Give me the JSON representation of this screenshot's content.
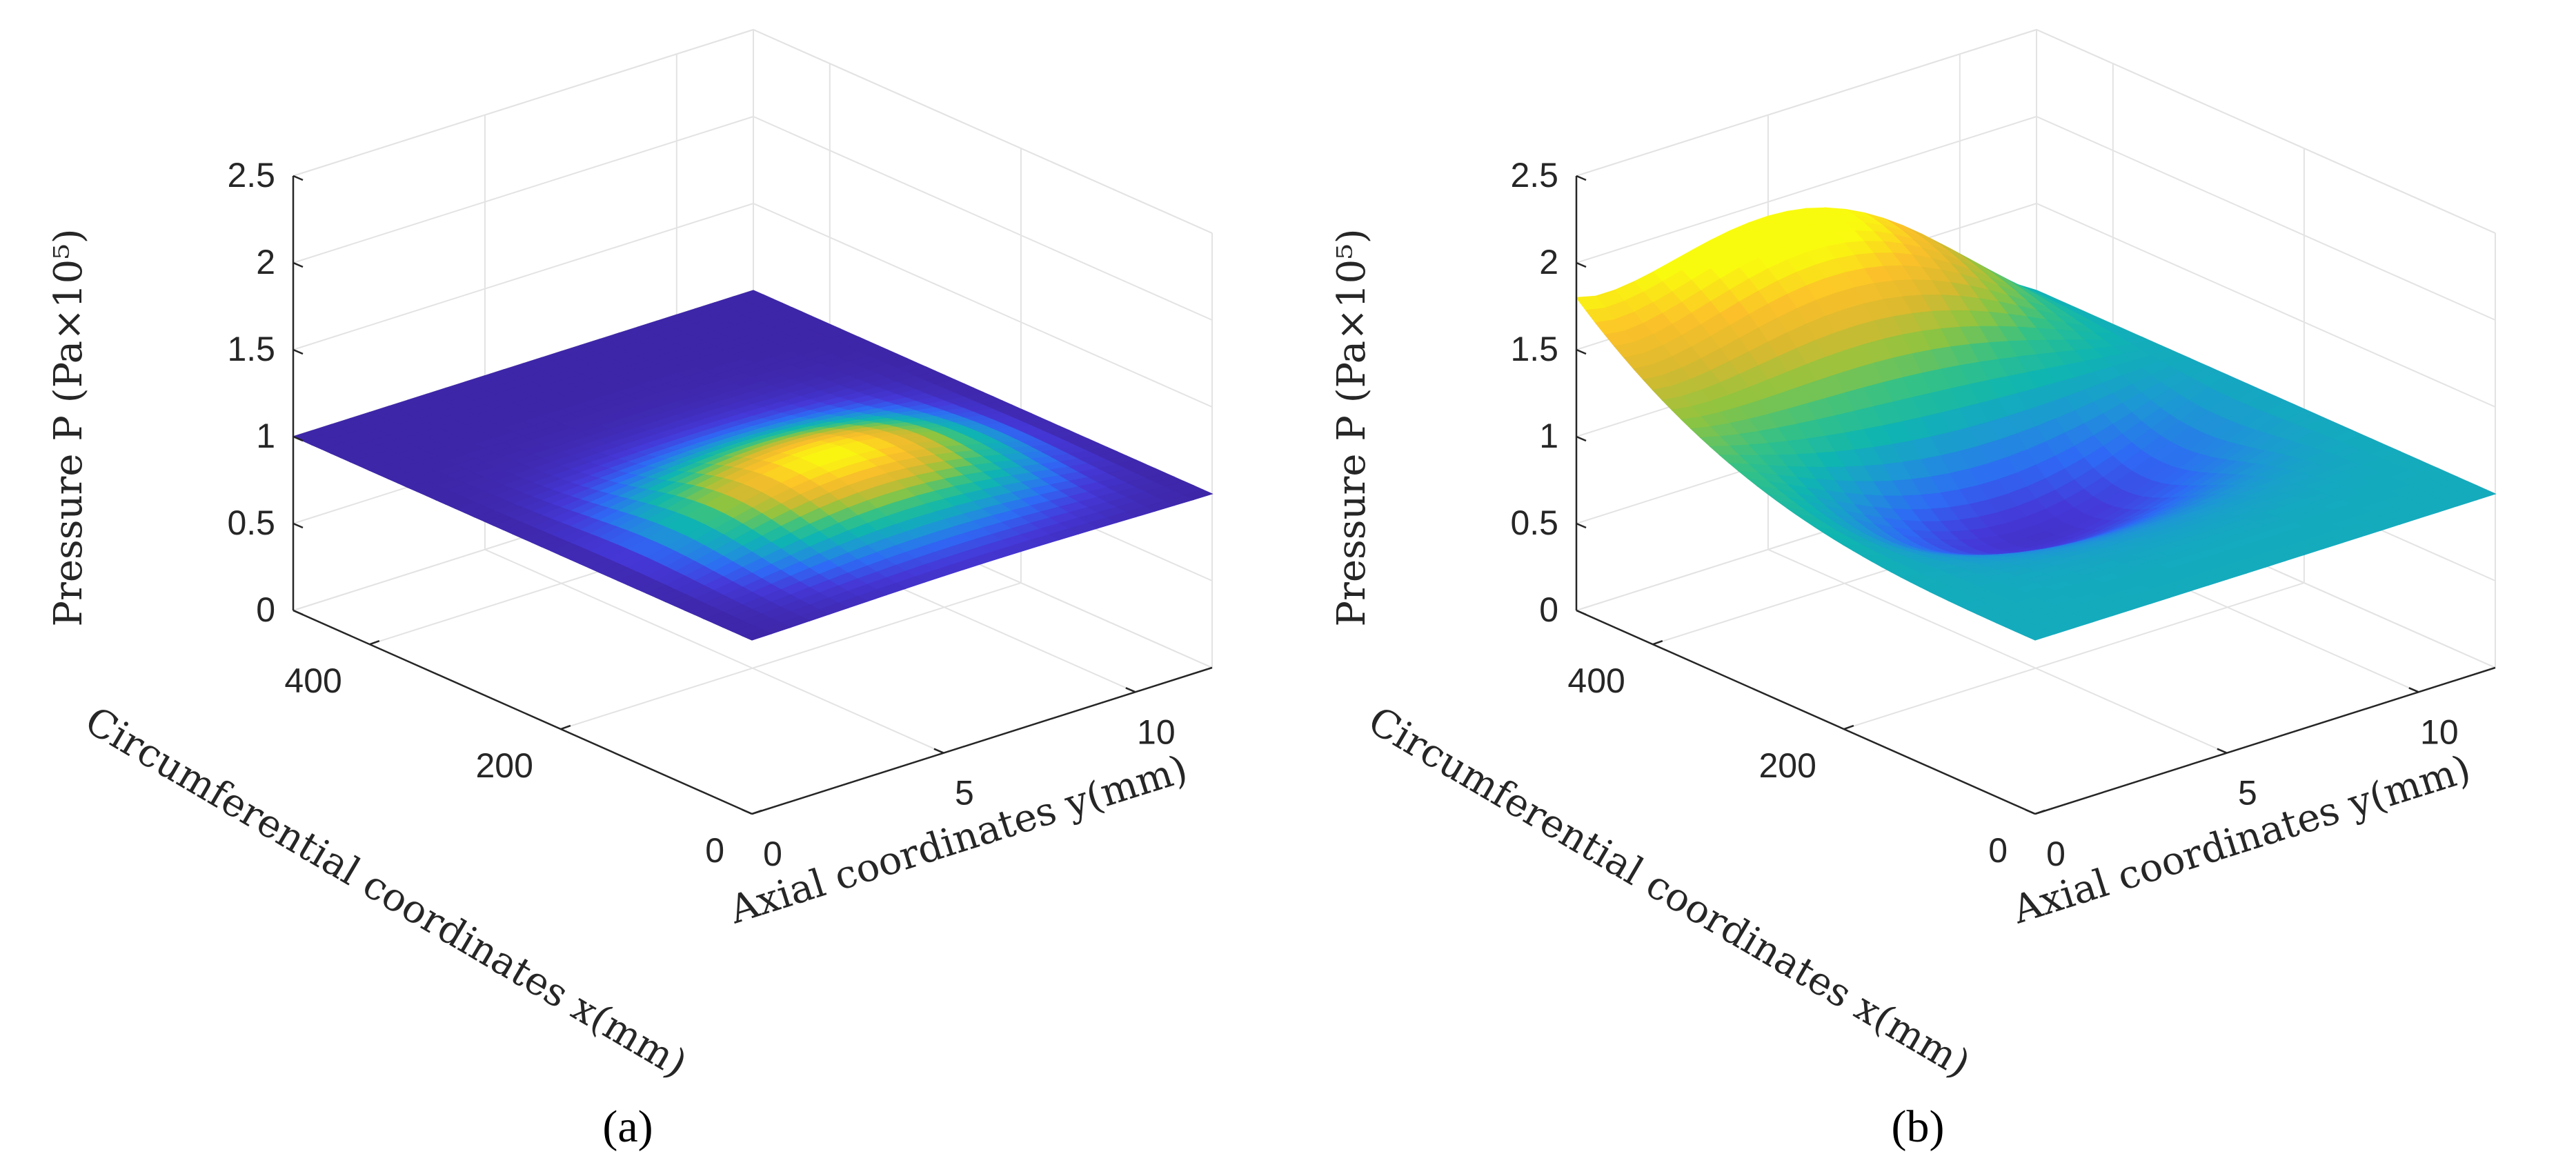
{
  "figure": {
    "panels": [
      {
        "label": "(a)",
        "label_letter": "a"
      },
      {
        "label": "(b)",
        "label_letter": "b"
      }
    ]
  },
  "chart_data": [
    {
      "type": "surface",
      "panel": "a",
      "zlabel": "Pressure P (Pa×10⁵)",
      "xlabel": "Circumferential coordinates x(mm)",
      "ylabel": "Axial coordinates y(mm)",
      "x_ticks": [
        "0",
        "200",
        "400"
      ],
      "y_ticks": [
        "0",
        "5",
        "10"
      ],
      "z_ticks": [
        "0",
        "0.5",
        "1",
        "1.5",
        "2",
        "2.5"
      ],
      "xlim": [
        0,
        480
      ],
      "ylim": [
        0,
        12
      ],
      "zlim": [
        0,
        2.5
      ],
      "grid": true,
      "colormap": "parula",
      "ambient_pressure": 1.0,
      "peak_pressure": 1.25,
      "peak_location_x": 160,
      "description_values": {
        "bump_center_y": 6,
        "bump_width_x": 190
      }
    },
    {
      "type": "surface",
      "panel": "b",
      "zlabel": "Pressure P (Pa×10⁵)",
      "xlabel": "Circumferential coordinates x(mm)",
      "ylabel": "Axial coordinates y(mm)",
      "x_ticks": [
        "0",
        "200",
        "400"
      ],
      "y_ticks": [
        "0",
        "5",
        "10"
      ],
      "z_ticks": [
        "0",
        "0.5",
        "1",
        "1.5",
        "2",
        "2.5"
      ],
      "xlim": [
        0,
        480
      ],
      "ylim": [
        0,
        12
      ],
      "zlim": [
        0,
        2.5
      ],
      "grid": true,
      "colormap": "parula",
      "ambient_pressure": 1.0,
      "peak_pressure": 1.8,
      "min_pressure": 0.45,
      "peak_location_x": 480
    }
  ],
  "colors": {
    "parula": [
      "#3e26a8",
      "#4538d8",
      "#2e6af5",
      "#1d97d5",
      "#0fb5b1",
      "#35c186",
      "#8fc440",
      "#d9b92f",
      "#fcc12a",
      "#f9fb0e"
    ]
  }
}
